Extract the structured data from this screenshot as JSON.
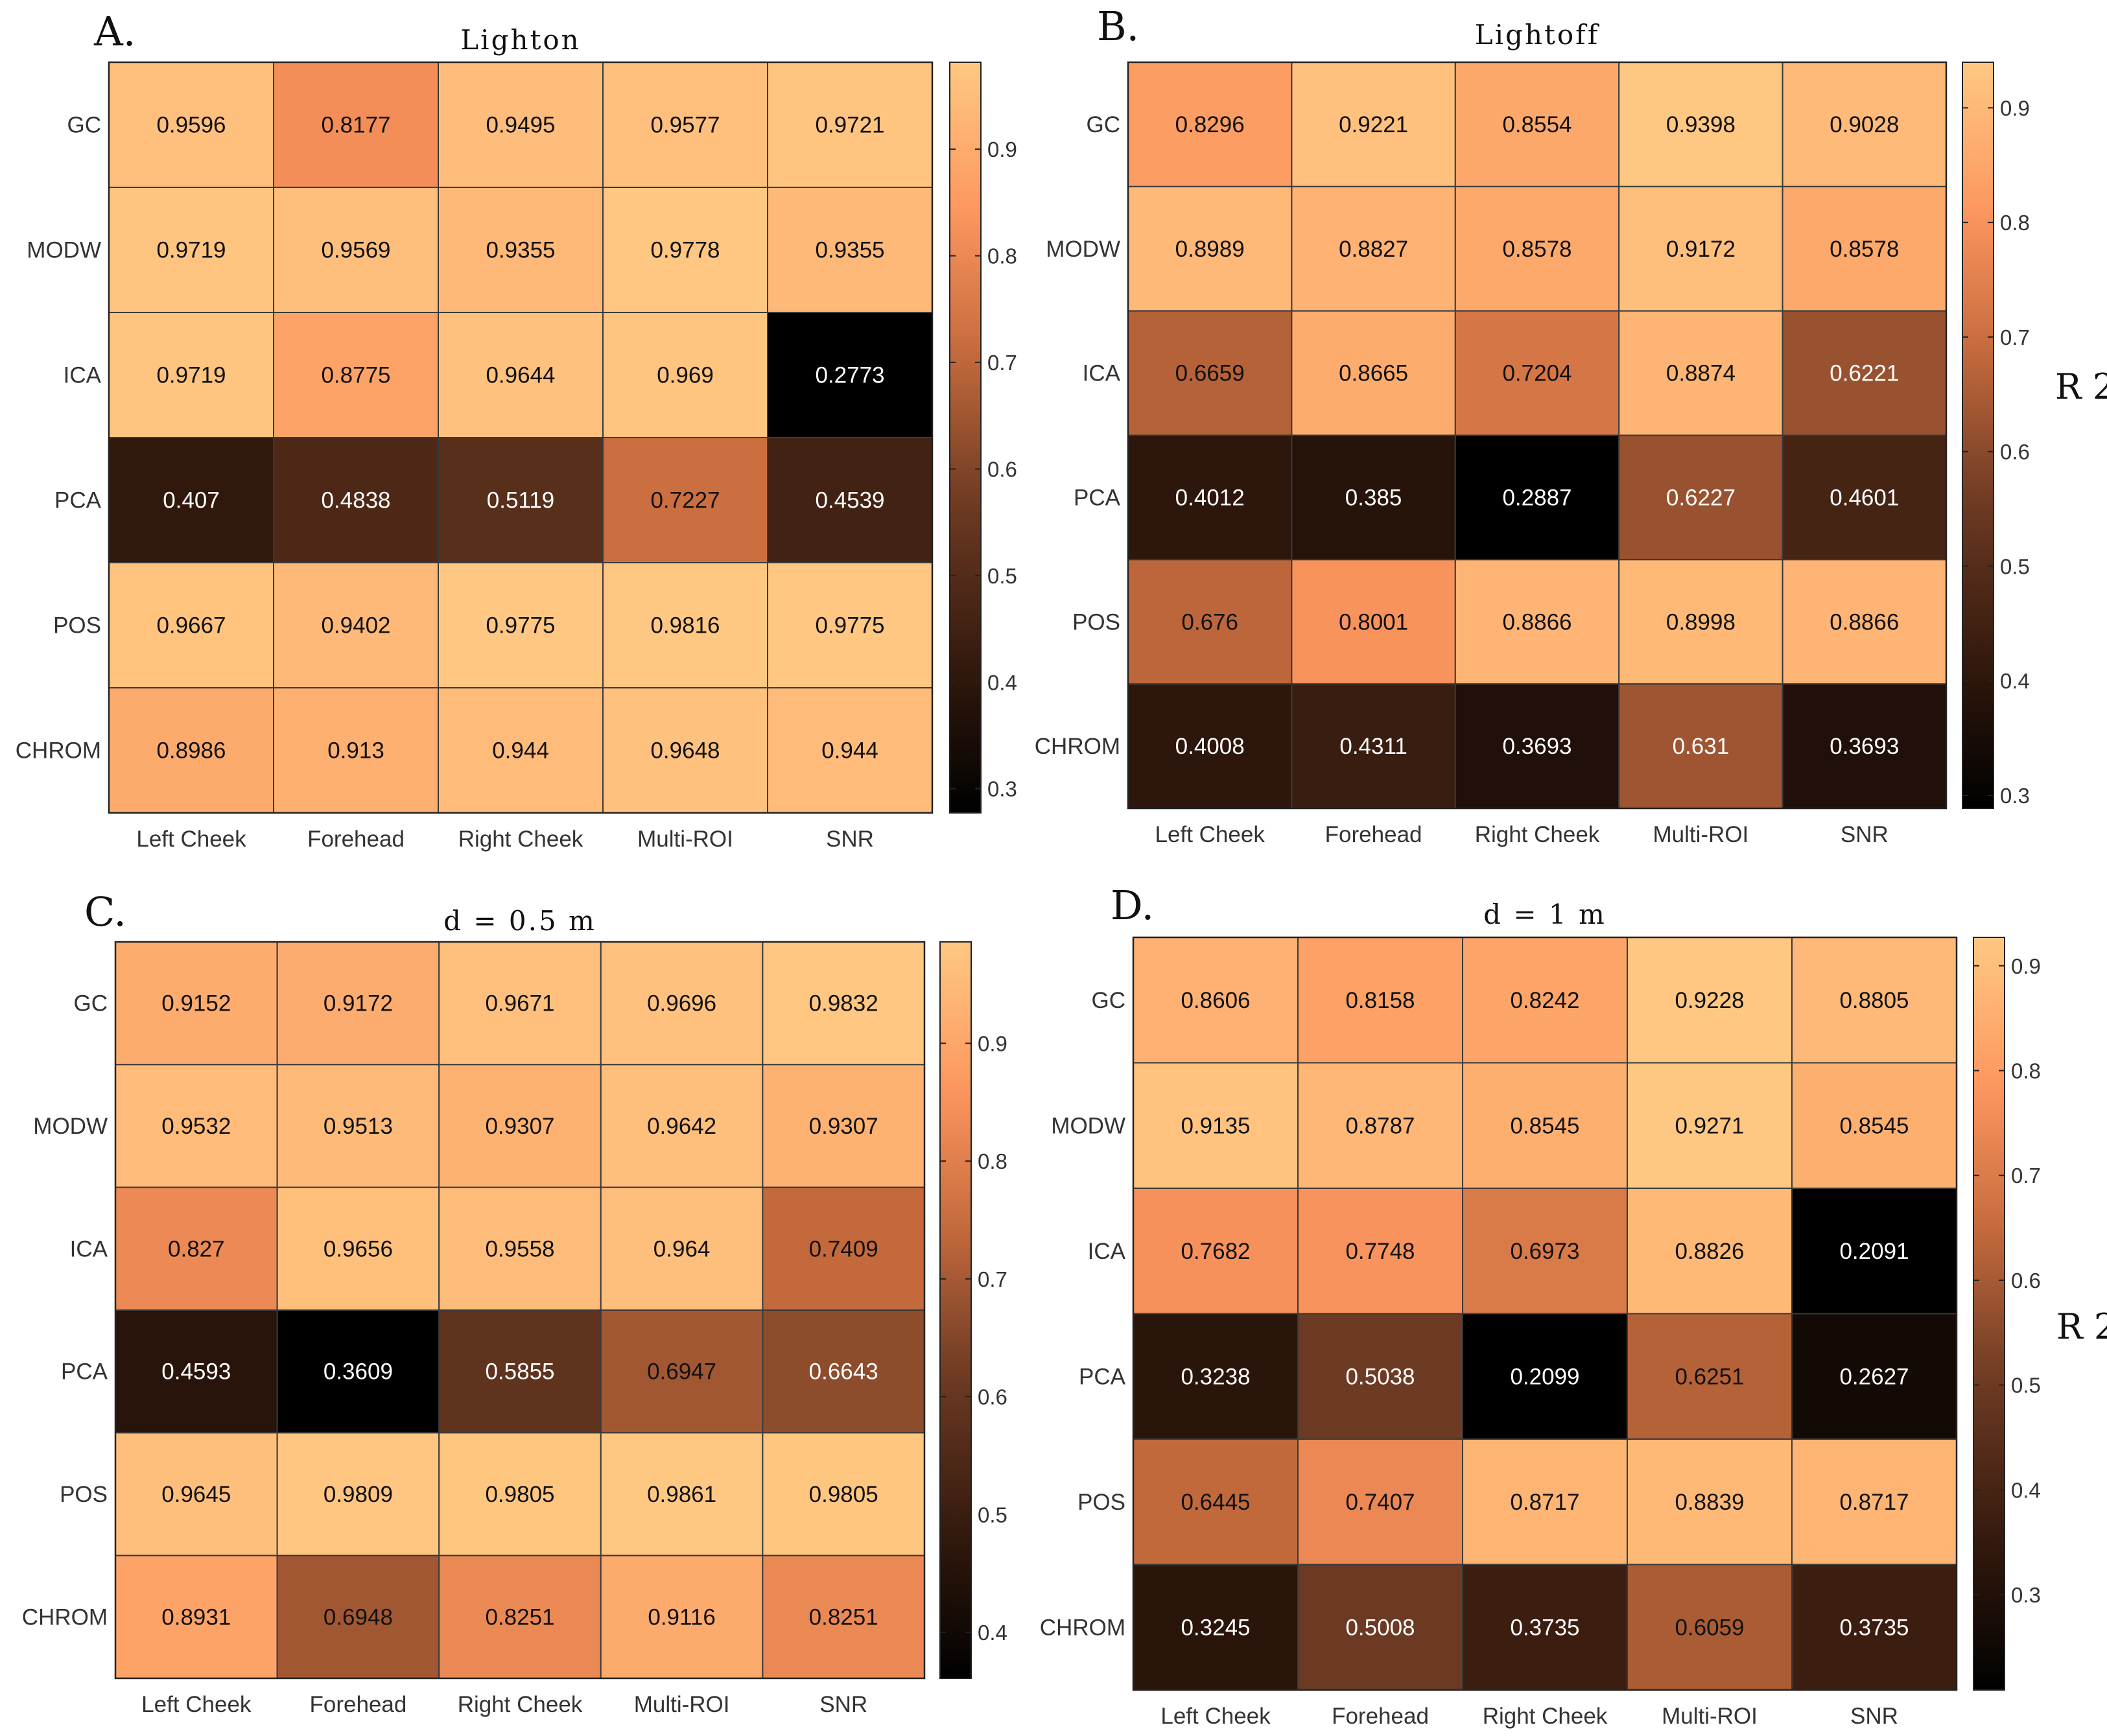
{
  "chart_data": [
    {
      "type": "heatmap",
      "panel": "A.",
      "title": "Lighton",
      "row_labels": [
        "GC",
        "MODW",
        "ICA",
        "PCA",
        "POS",
        "CHROM"
      ],
      "col_labels": [
        "Left Cheek",
        "Forehead",
        "Right Cheek",
        "Multi-ROI",
        "SNR"
      ],
      "values": [
        [
          0.9596,
          0.8177,
          0.9495,
          0.9577,
          0.9721
        ],
        [
          0.9719,
          0.9569,
          0.9355,
          0.9778,
          0.9355
        ],
        [
          0.9719,
          0.8775,
          0.9644,
          0.969,
          0.2773
        ],
        [
          0.407,
          0.4838,
          0.5119,
          0.7227,
          0.4539
        ],
        [
          0.9667,
          0.9402,
          0.9775,
          0.9816,
          0.9775
        ],
        [
          0.8986,
          0.913,
          0.944,
          0.9648,
          0.944
        ]
      ],
      "labels": [
        [
          "0.9596",
          "0.8177",
          "0.9495",
          "0.9577",
          "0.9721"
        ],
        [
          "0.9719",
          "0.9569",
          "0.9355",
          "0.9778",
          "0.9355"
        ],
        [
          "0.9719",
          "0.8775",
          "0.9644",
          "0.969",
          "0.2773"
        ],
        [
          "0.407",
          "0.4838",
          "0.5119",
          "0.7227",
          "0.4539"
        ],
        [
          "0.9667",
          "0.9402",
          "0.9775",
          "0.9816",
          "0.9775"
        ],
        [
          "0.8986",
          "0.913",
          "0.944",
          "0.9648",
          "0.944"
        ]
      ],
      "colorbar": {
        "range": [
          0.2773,
          0.9816
        ],
        "ticks": [
          "0.3",
          "0.4",
          "0.5",
          "0.6",
          "0.7",
          "0.8",
          "0.9"
        ],
        "label": ""
      }
    },
    {
      "type": "heatmap",
      "panel": "B.",
      "title": "Lightoff",
      "row_labels": [
        "GC",
        "MODW",
        "ICA",
        "PCA",
        "POS",
        "CHROM"
      ],
      "col_labels": [
        "Left Cheek",
        "Forehead",
        "Right Cheek",
        "Multi-ROI",
        "SNR"
      ],
      "values": [
        [
          0.8296,
          0.9221,
          0.8554,
          0.9398,
          0.9028
        ],
        [
          0.8989,
          0.8827,
          0.8578,
          0.9172,
          0.8578
        ],
        [
          0.6659,
          0.8665,
          0.7204,
          0.8874,
          0.6221
        ],
        [
          0.4012,
          0.385,
          0.2887,
          0.6227,
          0.4601
        ],
        [
          0.676,
          0.8001,
          0.8866,
          0.8998,
          0.8866
        ],
        [
          0.4008,
          0.4311,
          0.3693,
          0.631,
          0.3693
        ]
      ],
      "labels": [
        [
          "0.8296",
          "0.9221",
          "0.8554",
          "0.9398",
          "0.9028"
        ],
        [
          "0.8989",
          "0.8827",
          "0.8578",
          "0.9172",
          "0.8578"
        ],
        [
          "0.6659",
          "0.8665",
          "0.7204",
          "0.8874",
          "0.6221"
        ],
        [
          "0.4012",
          "0.385",
          "0.2887",
          "0.6227",
          "0.4601"
        ],
        [
          "0.676",
          "0.8001",
          "0.8866",
          "0.8998",
          "0.8866"
        ],
        [
          "0.4008",
          "0.4311",
          "0.3693",
          "0.631",
          "0.3693"
        ]
      ],
      "colorbar": {
        "range": [
          0.2887,
          0.9398
        ],
        "ticks": [
          "0.3",
          "0.4",
          "0.5",
          "0.6",
          "0.7",
          "0.8",
          "0.9"
        ],
        "label": "R 2"
      }
    },
    {
      "type": "heatmap",
      "panel": "C.",
      "title": "d = 0.5 m",
      "row_labels": [
        "GC",
        "MODW",
        "ICA",
        "PCA",
        "POS",
        "CHROM"
      ],
      "col_labels": [
        "Left Cheek",
        "Forehead",
        "Right Cheek",
        "Multi-ROI",
        "SNR"
      ],
      "values": [
        [
          0.9152,
          0.9172,
          0.9671,
          0.9696,
          0.9832
        ],
        [
          0.9532,
          0.9513,
          0.9307,
          0.9642,
          0.9307
        ],
        [
          0.827,
          0.9656,
          0.9558,
          0.964,
          0.7409
        ],
        [
          0.4593,
          0.3609,
          0.5855,
          0.6947,
          0.6643
        ],
        [
          0.9645,
          0.9809,
          0.9805,
          0.9861,
          0.9805
        ],
        [
          0.8931,
          0.6948,
          0.8251,
          0.9116,
          0.8251
        ]
      ],
      "labels": [
        [
          "0.9152",
          "0.9172",
          "0.9671",
          "0.9696",
          "0.9832"
        ],
        [
          "0.9532",
          "0.9513",
          "0.9307",
          "0.9642",
          "0.9307"
        ],
        [
          "0.827",
          "0.9656",
          "0.9558",
          "0.964",
          "0.7409"
        ],
        [
          "0.4593",
          "0.3609",
          "0.5855",
          "0.6947",
          "0.6643"
        ],
        [
          "0.9645",
          "0.9809",
          "0.9805",
          "0.9861",
          "0.9805"
        ],
        [
          "0.8931",
          "0.6948",
          "0.8251",
          "0.9116",
          "0.8251"
        ]
      ],
      "colorbar": {
        "range": [
          0.3609,
          0.9861
        ],
        "ticks": [
          "0.4",
          "0.5",
          "0.6",
          "0.7",
          "0.8",
          "0.9"
        ],
        "label": ""
      }
    },
    {
      "type": "heatmap",
      "panel": "D.",
      "title": "d = 1 m",
      "row_labels": [
        "GC",
        "MODW",
        "ICA",
        "PCA",
        "POS",
        "CHROM"
      ],
      "col_labels": [
        "Left Cheek",
        "Forehead",
        "Right Cheek",
        "Multi-ROI",
        "SNR"
      ],
      "values": [
        [
          0.8606,
          0.8158,
          0.8242,
          0.9228,
          0.8805
        ],
        [
          0.9135,
          0.8787,
          0.8545,
          0.9271,
          0.8545
        ],
        [
          0.7682,
          0.7748,
          0.6973,
          0.8826,
          0.2091
        ],
        [
          0.3238,
          0.5038,
          0.2099,
          0.6251,
          0.2627
        ],
        [
          0.6445,
          0.7407,
          0.8717,
          0.8839,
          0.8717
        ],
        [
          0.3245,
          0.5008,
          0.3735,
          0.6059,
          0.3735
        ]
      ],
      "labels": [
        [
          "0.8606",
          "0.8158",
          "0.8242",
          "0.9228",
          "0.8805"
        ],
        [
          "0.9135",
          "0.8787",
          "0.8545",
          "0.9271",
          "0.8545"
        ],
        [
          "0.7682",
          "0.7748",
          "0.6973",
          "0.8826",
          "0.2091"
        ],
        [
          "0.3238",
          "0.5038",
          "0.2099",
          "0.6251",
          "0.2627"
        ],
        [
          "0.6445",
          "0.7407",
          "0.8717",
          "0.8839",
          "0.8717"
        ],
        [
          "0.3245",
          "0.5008",
          "0.3735",
          "0.6059",
          "0.3735"
        ]
      ],
      "colorbar": {
        "range": [
          0.2091,
          0.9271
        ],
        "ticks": [
          "0.3",
          "0.4",
          "0.5",
          "0.6",
          "0.7",
          "0.8",
          "0.9"
        ],
        "label": "R 2"
      }
    }
  ]
}
